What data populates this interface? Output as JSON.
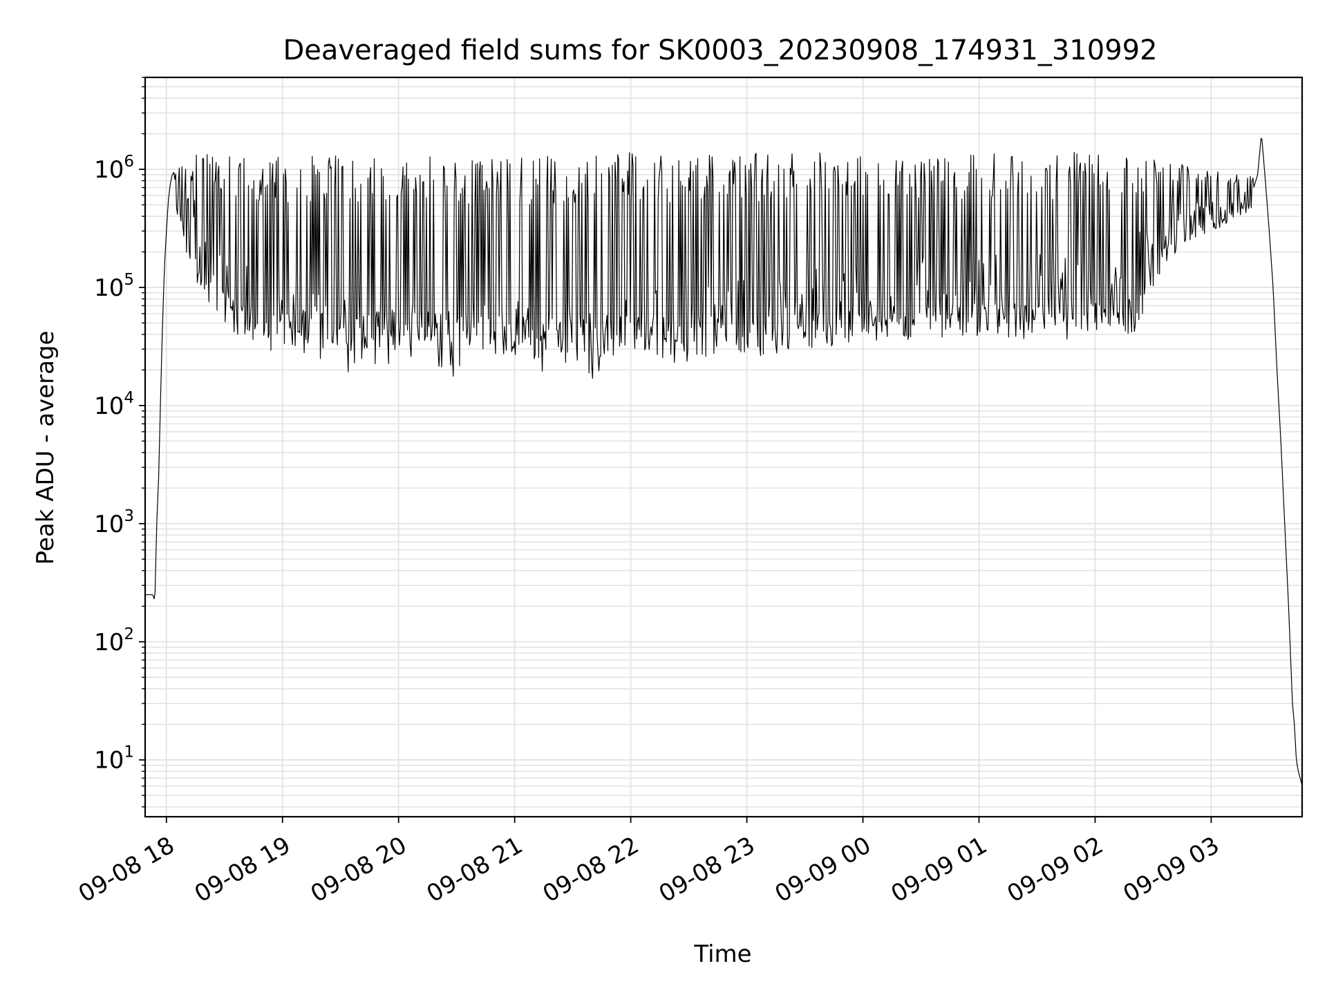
{
  "chart_data": {
    "type": "line",
    "title": "Deaveraged field sums for SK0003_20230908_174931_310992",
    "xlabel": "Time",
    "ylabel": "Peak ADU - average",
    "yscale": "log",
    "ylim": [
      3.3,
      6000000
    ],
    "xlim": [
      "2023-09-08 17:49",
      "2023-09-09 03:47"
    ],
    "grid": true,
    "line_color": "#000000",
    "grid_color": "#e3e3e3",
    "x_ticks": [
      {
        "value": "2023-09-08 18:00",
        "label": "09-08 18"
      },
      {
        "value": "2023-09-08 19:00",
        "label": "09-08 19"
      },
      {
        "value": "2023-09-08 20:00",
        "label": "09-08 20"
      },
      {
        "value": "2023-09-08 21:00",
        "label": "09-08 21"
      },
      {
        "value": "2023-09-08 22:00",
        "label": "09-08 22"
      },
      {
        "value": "2023-09-08 23:00",
        "label": "09-08 23"
      },
      {
        "value": "2023-09-09 00:00",
        "label": "09-09 00"
      },
      {
        "value": "2023-09-09 01:00",
        "label": "09-09 01"
      },
      {
        "value": "2023-09-09 02:00",
        "label": "09-09 02"
      },
      {
        "value": "2023-09-09 03:00",
        "label": "09-09 03"
      }
    ],
    "y_ticks": [
      {
        "value": 10,
        "base": "10",
        "exp": "1"
      },
      {
        "value": 100,
        "base": "10",
        "exp": "2"
      },
      {
        "value": 1000,
        "base": "10",
        "exp": "3"
      },
      {
        "value": 10000,
        "base": "10",
        "exp": "4"
      },
      {
        "value": 100000,
        "base": "10",
        "exp": "5"
      },
      {
        "value": 1000000,
        "base": "10",
        "exp": "6"
      }
    ],
    "series": [
      {
        "x": [
          "2023-09-08 17:49",
          "2023-09-08 17:53",
          "2023-09-08 17:54",
          "2023-09-08 17:55",
          "2023-09-08 17:56",
          "2023-09-08 17:57",
          "2023-09-08 17:58",
          "2023-09-08 17:59",
          "2023-09-08 18:00",
          "2023-09-08 18:01",
          "2023-09-08 18:02",
          "2023-09-08 18:03",
          "2023-09-08 18:04",
          "2023-09-08 18:06",
          "2023-09-08 18:08",
          "2023-09-08 18:10",
          "2023-09-08 18:12",
          "2023-09-08 18:14",
          "2023-09-08 18:16",
          "2023-09-08 18:20",
          "2023-09-08 18:25",
          "2023-09-08 18:30",
          "2023-09-08 18:35",
          "2023-09-08 18:40",
          "2023-09-08 18:45",
          "2023-09-08 18:52",
          "2023-09-08 19:00",
          "2023-09-08 19:10",
          "2023-09-08 19:20",
          "2023-09-08 19:30",
          "2023-09-08 19:45",
          "2023-09-08 20:00",
          "2023-09-08 20:20",
          "2023-09-08 20:40",
          "2023-09-08 21:00",
          "2023-09-08 21:20",
          "2023-09-08 21:40",
          "2023-09-08 22:00",
          "2023-09-08 22:20",
          "2023-09-08 22:40",
          "2023-09-08 23:00",
          "2023-09-08 23:20",
          "2023-09-08 23:40",
          "2023-09-09 00:00",
          "2023-09-09 00:20",
          "2023-09-09 00:40",
          "2023-09-09 01:00",
          "2023-09-09 01:20",
          "2023-09-09 01:40",
          "2023-09-09 02:00",
          "2023-09-09 02:20",
          "2023-09-09 02:35",
          "2023-09-09 02:50",
          "2023-09-09 03:00",
          "2023-09-09 03:10",
          "2023-09-09 03:15",
          "2023-09-09 03:20",
          "2023-09-09 03:22",
          "2023-09-09 03:24",
          "2023-09-09 03:26",
          "2023-09-09 03:28",
          "2023-09-09 03:30",
          "2023-09-09 03:32",
          "2023-09-09 03:34",
          "2023-09-09 03:36",
          "2023-09-09 03:38",
          "2023-09-09 03:40",
          "2023-09-09 03:42",
          "2023-09-09 03:43",
          "2023-09-09 03:44",
          "2023-09-09 03:45",
          "2023-09-09 03:46",
          "2023-09-09 03:47"
        ],
        "base": [
          250,
          250,
          220,
          1000,
          2500,
          12000,
          50000,
          150000,
          300000,
          550000,
          750000,
          900000,
          950000,
          900000,
          800000,
          700000,
          600000,
          500000,
          400000,
          300000,
          200000,
          150000,
          100000,
          80000,
          70000,
          60000,
          50000,
          45000,
          42000,
          40000,
          40000,
          38000,
          37000,
          36000,
          35000,
          35000,
          36000,
          40000,
          45000,
          50000,
          55000,
          60000,
          70000,
          80000,
          90000,
          100000,
          100000,
          100000,
          100000,
          110000,
          150000,
          300000,
          400000,
          450000,
          500000,
          550000,
          600000,
          700000,
          900000,
          2000000,
          800000,
          300000,
          100000,
          20000,
          5000,
          1000,
          200,
          30,
          20,
          10,
          8,
          7,
          6
        ],
        "envelope_high": [
          250,
          250,
          220,
          1000,
          2500,
          12000,
          50000,
          150000,
          300000,
          550000,
          750000,
          900000,
          950000,
          1000000,
          1100000,
          1200000,
          1300000,
          1400000,
          1500000,
          1600000,
          1600000,
          1500000,
          1400000,
          1300000,
          1300000,
          1300000,
          1300000,
          1300000,
          1300000,
          1300000,
          1300000,
          1300000,
          1300000,
          1300000,
          1300000,
          1300000,
          1300000,
          1400000,
          1400000,
          1400000,
          1400000,
          1400000,
          1400000,
          1400000,
          1400000,
          1400000,
          1400000,
          1400000,
          1400000,
          1400000,
          1300000,
          1200000,
          1100000,
          1000000,
          950000,
          900000,
          900000,
          900000,
          1000000,
          3000000,
          800000,
          300000,
          100000,
          20000,
          5000,
          1000,
          200,
          30,
          20,
          10,
          8,
          7,
          6
        ],
        "envelope_low": [
          250,
          250,
          220,
          1000,
          2500,
          12000,
          50000,
          150000,
          300000,
          550000,
          750000,
          700000,
          500000,
          400000,
          300000,
          200000,
          150000,
          120000,
          100000,
          80000,
          60000,
          45000,
          40000,
          35000,
          33000,
          33000,
          32000,
          32000,
          32000,
          31000,
          30000,
          29000,
          28000,
          27000,
          26000,
          25000,
          25000,
          27000,
          27000,
          26000,
          25000,
          28000,
          30000,
          32000,
          33000,
          35000,
          35000,
          35000,
          35000,
          38000,
          40000,
          150000,
          250000,
          300000,
          350000,
          400000,
          450000,
          500000,
          700000,
          1500000,
          200000,
          100000,
          20000,
          5000,
          1000,
          200,
          30,
          20,
          10,
          8,
          7,
          6,
          6
        ]
      }
    ]
  }
}
